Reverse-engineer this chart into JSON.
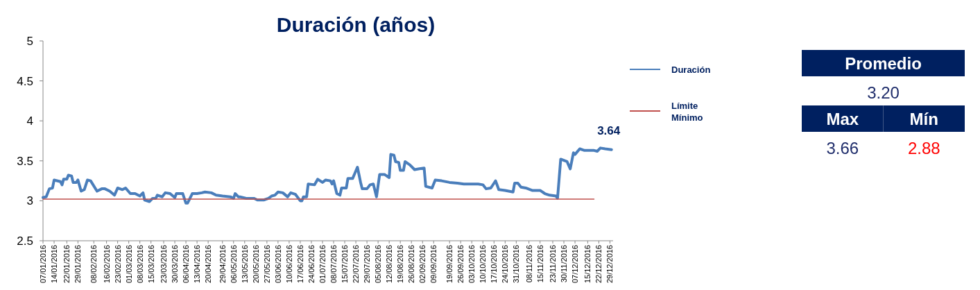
{
  "chart_data": [
    {
      "type": "line",
      "title": "Duración (años)",
      "xlim": [
        "2016-01-07",
        "2016-12-31"
      ],
      "ylim": [
        2.5,
        5
      ],
      "yticks": [
        2.5,
        3,
        3.5,
        4,
        4.5,
        5
      ],
      "xticks": [
        {
          "value": "2016-01-07",
          "label": "07/01/2016"
        },
        {
          "value": "2016-01-14",
          "label": "14/01/2016"
        },
        {
          "value": "2016-01-22",
          "label": "22/01/2016"
        },
        {
          "value": "2016-01-29",
          "label": "29/01/2016"
        },
        {
          "value": "2016-02-08",
          "label": "08/02/2016"
        },
        {
          "value": "2016-02-16",
          "label": "16/02/2016"
        },
        {
          "value": "2016-02-23",
          "label": "23/02/2016"
        },
        {
          "value": "2016-03-01",
          "label": "01/03/2016"
        },
        {
          "value": "2016-03-08",
          "label": "08/03/2016"
        },
        {
          "value": "2016-03-15",
          "label": "15/03/2016"
        },
        {
          "value": "2016-03-23",
          "label": "23/03/2016"
        },
        {
          "value": "2016-03-30",
          "label": "30/03/2016"
        },
        {
          "value": "2016-04-06",
          "label": "06/04/2016"
        },
        {
          "value": "2016-04-13",
          "label": "13/04/2016"
        },
        {
          "value": "2016-04-20",
          "label": "20/04/2016"
        },
        {
          "value": "2016-04-29",
          "label": "29/04/2016"
        },
        {
          "value": "2016-05-06",
          "label": "06/05/2016"
        },
        {
          "value": "2016-05-13",
          "label": "13/05/2016"
        },
        {
          "value": "2016-05-20",
          "label": "20/05/2016"
        },
        {
          "value": "2016-05-27",
          "label": "27/05/2016"
        },
        {
          "value": "2016-06-03",
          "label": "03/06/2016"
        },
        {
          "value": "2016-06-10",
          "label": "10/06/2016"
        },
        {
          "value": "2016-06-17",
          "label": "17/06/2016"
        },
        {
          "value": "2016-06-24",
          "label": "24/06/2016"
        },
        {
          "value": "2016-07-01",
          "label": "01/07/2016"
        },
        {
          "value": "2016-07-08",
          "label": "08/07/2016"
        },
        {
          "value": "2016-07-15",
          "label": "15/07/2016"
        },
        {
          "value": "2016-07-22",
          "label": "22/07/2016"
        },
        {
          "value": "2016-07-29",
          "label": "29/07/2016"
        },
        {
          "value": "2016-08-05",
          "label": "05/08/2016"
        },
        {
          "value": "2016-08-12",
          "label": "12/08/2016"
        },
        {
          "value": "2016-08-19",
          "label": "19/08/2016"
        },
        {
          "value": "2016-08-26",
          "label": "26/08/2016"
        },
        {
          "value": "2016-09-02",
          "label": "02/09/2016"
        },
        {
          "value": "2016-09-09",
          "label": "09/09/2016"
        },
        {
          "value": "2016-09-19",
          "label": "19/09/2016"
        },
        {
          "value": "2016-09-26",
          "label": "26/09/2016"
        },
        {
          "value": "2016-10-03",
          "label": "03/10/2016"
        },
        {
          "value": "2016-10-10",
          "label": "10/10/2016"
        },
        {
          "value": "2016-10-17",
          "label": "17/10/2016"
        },
        {
          "value": "2016-10-24",
          "label": "24/10/2016"
        },
        {
          "value": "2016-10-31",
          "label": "31/10/2016"
        },
        {
          "value": "2016-11-08",
          "label": "08/11/2016"
        },
        {
          "value": "2016-11-15",
          "label": "15/11/2016"
        },
        {
          "value": "2016-11-23",
          "label": "23/11/2016"
        },
        {
          "value": "2016-11-30",
          "label": "30/11/2016"
        },
        {
          "value": "2016-12-07",
          "label": "07/12/2016"
        },
        {
          "value": "2016-12-15",
          "label": "15/12/2016"
        },
        {
          "value": "2016-12-22",
          "label": "22/12/2016"
        },
        {
          "value": "2016-12-29",
          "label": "29/12/2016"
        }
      ],
      "legend": "right",
      "grid": false,
      "annotations": [
        {
          "text": "3.64",
          "x": "2016-12-30",
          "y": 3.64
        }
      ],
      "series": [
        {
          "name": "Duración",
          "color": "#4a7ebb",
          "x": [
            "2016-01-07",
            "2016-01-09",
            "2016-01-11",
            "2016-01-13",
            "2016-01-14",
            "2016-01-18",
            "2016-01-19",
            "2016-01-20",
            "2016-01-22",
            "2016-01-23",
            "2016-01-25",
            "2016-01-26",
            "2016-01-28",
            "2016-01-29",
            "2016-01-31",
            "2016-02-02",
            "2016-02-04",
            "2016-02-06",
            "2016-02-10",
            "2016-02-13",
            "2016-02-15",
            "2016-02-18",
            "2016-02-21",
            "2016-02-23",
            "2016-02-26",
            "2016-02-28",
            "2016-03-02",
            "2016-03-05",
            "2016-03-08",
            "2016-03-10",
            "2016-03-11",
            "2016-03-14",
            "2016-03-16",
            "2016-03-18",
            "2016-03-19",
            "2016-03-22",
            "2016-03-24",
            "2016-03-27",
            "2016-03-30",
            "2016-03-31",
            "2016-04-04",
            "2016-04-06",
            "2016-04-07",
            "2016-04-10",
            "2016-04-13",
            "2016-04-16",
            "2016-04-18",
            "2016-04-22",
            "2016-04-25",
            "2016-04-29",
            "2016-05-04",
            "2016-05-06",
            "2016-05-07",
            "2016-05-09",
            "2016-05-10",
            "2016-05-14",
            "2016-05-19",
            "2016-05-21",
            "2016-05-25",
            "2016-05-28",
            "2016-05-30",
            "2016-06-01",
            "2016-06-03",
            "2016-06-06",
            "2016-06-09",
            "2016-06-11",
            "2016-06-14",
            "2016-06-17",
            "2016-06-18",
            "2016-06-19",
            "2016-06-21",
            "2016-06-22",
            "2016-06-26",
            "2016-06-28",
            "2016-07-01",
            "2016-07-03",
            "2016-07-06",
            "2016-07-07",
            "2016-07-08",
            "2016-07-10",
            "2016-07-12",
            "2016-07-13",
            "2016-07-16",
            "2016-07-17",
            "2016-07-20",
            "2016-07-23",
            "2016-07-25",
            "2016-07-26",
            "2016-07-29",
            "2016-07-31",
            "2016-08-02",
            "2016-08-04",
            "2016-08-06",
            "2016-08-09",
            "2016-08-12",
            "2016-08-13",
            "2016-08-15",
            "2016-08-16",
            "2016-08-18",
            "2016-08-19",
            "2016-08-21",
            "2016-08-22",
            "2016-08-25",
            "2016-08-28",
            "2016-08-31",
            "2016-09-03",
            "2016-09-04",
            "2016-09-08",
            "2016-09-10",
            "2016-09-14",
            "2016-09-19",
            "2016-09-24",
            "2016-09-28",
            "2016-10-02",
            "2016-10-07",
            "2016-10-10",
            "2016-10-12",
            "2016-10-15",
            "2016-10-16",
            "2016-10-18",
            "2016-10-20",
            "2016-10-24",
            "2016-10-29",
            "2016-10-30",
            "2016-11-01",
            "2016-11-03",
            "2016-11-06",
            "2016-11-10",
            "2016-11-15",
            "2016-11-18",
            "2016-11-21",
            "2016-11-25",
            "2016-11-26",
            "2016-11-28",
            "2016-12-02",
            "2016-12-04",
            "2016-12-06",
            "2016-12-07",
            "2016-12-10",
            "2016-12-13",
            "2016-12-19",
            "2016-12-21",
            "2016-12-23",
            "2016-12-26",
            "2016-12-30"
          ],
          "values": [
            3.04,
            3.05,
            3.15,
            3.16,
            3.26,
            3.24,
            3.2,
            3.27,
            3.27,
            3.32,
            3.31,
            3.23,
            3.23,
            3.26,
            3.12,
            3.14,
            3.26,
            3.25,
            3.12,
            3.15,
            3.15,
            3.12,
            3.07,
            3.16,
            3.14,
            3.16,
            3.09,
            3.09,
            3.06,
            3.1,
            3.01,
            2.99,
            3.03,
            3.03,
            3.07,
            3.05,
            3.1,
            3.09,
            3.04,
            3.09,
            3.09,
            2.97,
            2.97,
            3.09,
            3.09,
            3.1,
            3.11,
            3.1,
            3.07,
            3.06,
            3.05,
            3.03,
            3.09,
            3.05,
            3.05,
            3.03,
            3.03,
            3.01,
            3.01,
            3.03,
            3.06,
            3.07,
            3.11,
            3.1,
            3.05,
            3.1,
            3.08,
            3.0,
            3.0,
            3.05,
            3.05,
            3.21,
            3.2,
            3.27,
            3.23,
            3.26,
            3.25,
            3.21,
            3.25,
            3.09,
            3.07,
            3.16,
            3.16,
            3.28,
            3.28,
            3.42,
            3.23,
            3.15,
            3.15,
            3.2,
            3.21,
            3.05,
            3.33,
            3.33,
            3.29,
            3.58,
            3.57,
            3.49,
            3.48,
            3.38,
            3.38,
            3.49,
            3.45,
            3.39,
            3.4,
            3.41,
            3.18,
            3.16,
            3.26,
            3.25,
            3.23,
            3.22,
            3.21,
            3.21,
            3.21,
            3.2,
            3.15,
            3.16,
            3.19,
            3.25,
            3.14,
            3.13,
            3.11,
            3.22,
            3.22,
            3.17,
            3.16,
            3.13,
            3.13,
            3.09,
            3.07,
            3.06,
            3.03,
            3.52,
            3.49,
            3.4,
            3.6,
            3.58,
            3.65,
            3.63,
            3.63,
            3.62,
            3.66,
            3.65,
            3.64
          ]
        },
        {
          "name": "Límite Mínimo",
          "color": "#c0504d",
          "x": [
            "2016-01-07",
            "2016-12-19"
          ],
          "values": [
            3.02,
            3.02
          ]
        }
      ]
    },
    {
      "type": "other",
      "categories": [
        "Promedio",
        "Max",
        "Mín"
      ],
      "value_labels": [
        "3.20",
        "3.66",
        "2.88"
      ],
      "colors": [
        "#002060",
        "#002060",
        "#002060"
      ]
    }
  ]
}
